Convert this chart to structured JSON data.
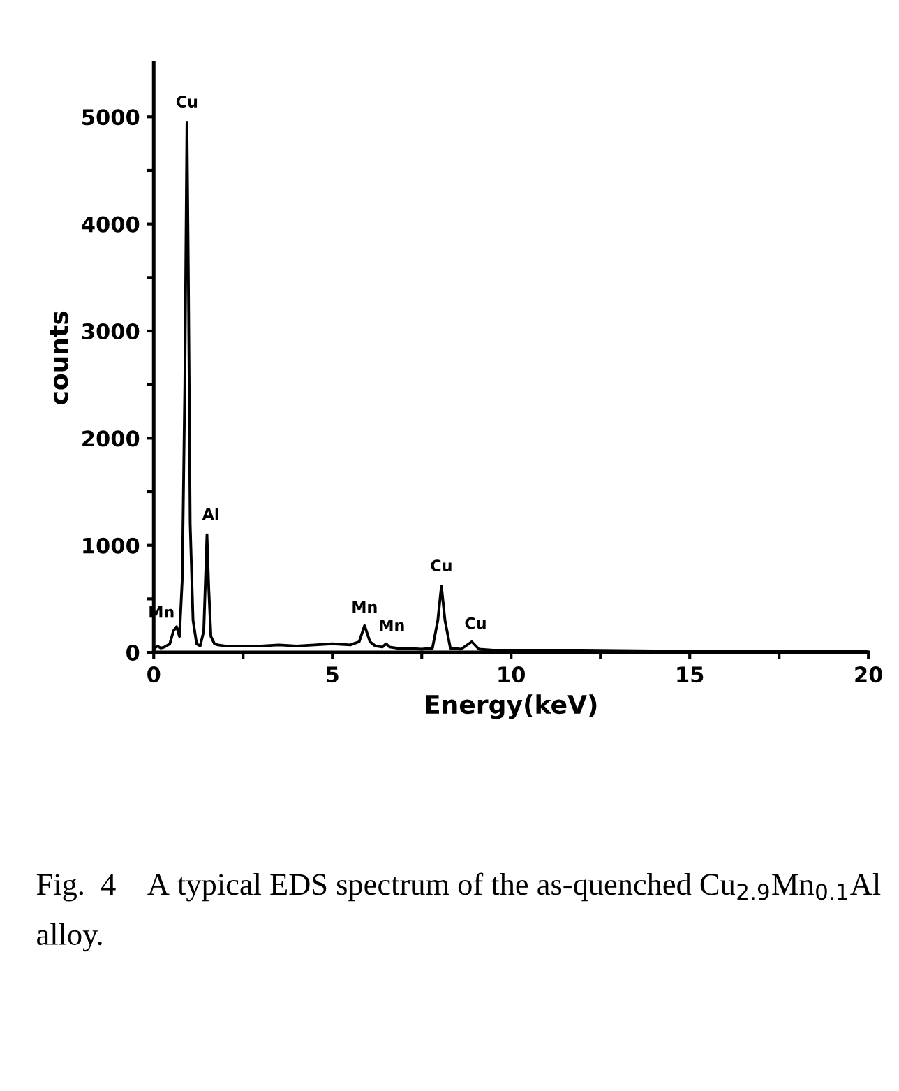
{
  "chart_data": {
    "type": "line",
    "xlabel": "Energy(keV)",
    "ylabel": "counts",
    "x": [
      0,
      0.1,
      0.2,
      0.3,
      0.45,
      0.55,
      0.64,
      0.72,
      0.8,
      0.87,
      0.93,
      0.97,
      1.02,
      1.1,
      1.2,
      1.3,
      1.4,
      1.45,
      1.49,
      1.54,
      1.6,
      1.7,
      1.8,
      2,
      2.5,
      3,
      3.5,
      4,
      4.5,
      5,
      5.5,
      5.75,
      5.9,
      6.05,
      6.2,
      6.4,
      6.5,
      6.6,
      6.8,
      7,
      7.5,
      7.8,
      7.95,
      8.05,
      8.15,
      8.3,
      8.6,
      8.9,
      9.1,
      9.5,
      10,
      12,
      15,
      17,
      20
    ],
    "series": [
      {
        "color": "#000000",
        "values": [
          30,
          60,
          40,
          50,
          80,
          200,
          240,
          150,
          700,
          2500,
          4950,
          3500,
          1200,
          300,
          80,
          60,
          200,
          700,
          1100,
          600,
          150,
          80,
          70,
          60,
          60,
          60,
          70,
          60,
          70,
          80,
          70,
          100,
          250,
          100,
          60,
          50,
          80,
          50,
          40,
          40,
          30,
          40,
          300,
          620,
          300,
          40,
          30,
          100,
          30,
          20,
          20,
          20,
          10,
          10,
          10
        ]
      }
    ],
    "xlim": [
      0,
      20
    ],
    "ylim": [
      0,
      5500
    ],
    "xticks": [
      0,
      {
        "value": 2.5,
        "label": null
      },
      5,
      {
        "value": 7.5,
        "label": null
      },
      10,
      {
        "value": 12.5,
        "label": null
      },
      15,
      {
        "value": 17.5,
        "label": null
      },
      20
    ],
    "yticks": [
      0,
      {
        "value": 500,
        "label": null
      },
      1000,
      {
        "value": 1500,
        "label": null
      },
      2000,
      {
        "value": 2500,
        "label": null
      },
      3000,
      {
        "value": 3500,
        "label": null
      },
      4000,
      {
        "value": 4500,
        "label": null
      },
      5000
    ],
    "grid": false,
    "marker": "none",
    "line_style": "solid",
    "annotations": [
      {
        "text": "Cu",
        "x": 0.93,
        "y": 4950
      },
      {
        "text": "Mn",
        "x": 0.64,
        "y": 240
      },
      {
        "text": "Al",
        "x": 1.49,
        "y": 1100
      },
      {
        "text": "Mn",
        "x": 5.9,
        "y": 250
      },
      {
        "text": "Mn",
        "x": 6.5,
        "y": 80
      },
      {
        "text": "Cu",
        "x": 8.05,
        "y": 620
      },
      {
        "text": "Cu",
        "x": 8.9,
        "y": 100
      },
      "Fig.  4    A typical EDS spectrum of the as-quenched Cu$_{2.9}$Mn$_{0.1}$Al alloy."
    ]
  }
}
